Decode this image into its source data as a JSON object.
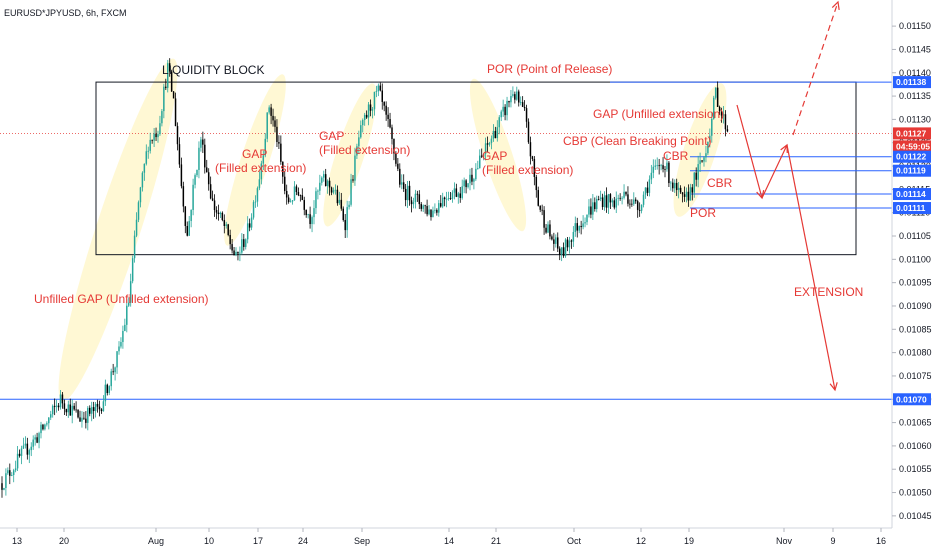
{
  "header": {
    "symbol_line": "EURUSD*JPYUSD, 6h, FXCM"
  },
  "colors": {
    "up": "#26a69a",
    "down": "#000000",
    "annotation": "#e53935",
    "level_line": "#2962ff",
    "current_price": "#e53935",
    "highlight": "#fff7cc"
  },
  "chart_data": {
    "type": "candlestick",
    "title": "",
    "ylim": [
      0.01043,
      0.01155
    ],
    "yticks": [
      "0.01045",
      "0.01050",
      "0.01055",
      "0.01060",
      "0.01065",
      "0.01070",
      "0.01075",
      "0.01080",
      "0.01085",
      "0.01090",
      "0.01095",
      "0.01100",
      "0.01105",
      "0.01110",
      "0.01115",
      "0.01120",
      "0.01125",
      "0.01130",
      "0.01135",
      "0.01140",
      "0.01145",
      "0.01150"
    ],
    "xticks": [
      "13",
      "20",
      "Aug",
      "10",
      "17",
      "24",
      "Sep",
      "14",
      "21",
      "Oct",
      "12",
      "19",
      "Nov",
      "9",
      "16"
    ],
    "price_path": [
      [
        0,
        0.01052
      ],
      [
        10,
        0.01058
      ],
      [
        20,
        0.01063
      ],
      [
        30,
        0.0107
      ],
      [
        40,
        0.01066
      ],
      [
        50,
        0.01068
      ],
      [
        60,
        0.0108
      ],
      [
        65,
        0.01091
      ],
      [
        70,
        0.01112
      ],
      [
        75,
        0.01125
      ],
      [
        80,
        0.01128
      ],
      [
        85,
        0.01141
      ],
      [
        88,
        0.01134
      ],
      [
        92,
        0.01116
      ],
      [
        95,
        0.01105
      ],
      [
        98,
        0.01115
      ],
      [
        102,
        0.01126
      ],
      [
        108,
        0.01112
      ],
      [
        114,
        0.01107
      ],
      [
        120,
        0.011
      ],
      [
        126,
        0.01106
      ],
      [
        132,
        0.01118
      ],
      [
        137,
        0.01133
      ],
      [
        141,
        0.01126
      ],
      [
        146,
        0.01112
      ],
      [
        152,
        0.01115
      ],
      [
        158,
        0.01109
      ],
      [
        164,
        0.01117
      ],
      [
        170,
        0.01115
      ],
      [
        176,
        0.01108
      ],
      [
        183,
        0.01126
      ],
      [
        188,
        0.01132
      ],
      [
        193,
        0.01136
      ],
      [
        199,
        0.01127
      ],
      [
        205,
        0.01115
      ],
      [
        212,
        0.01113
      ],
      [
        220,
        0.0111
      ],
      [
        228,
        0.01114
      ],
      [
        236,
        0.01115
      ],
      [
        244,
        0.0112
      ],
      [
        251,
        0.01126
      ],
      [
        258,
        0.01132
      ],
      [
        262,
        0.01136
      ],
      [
        268,
        0.01131
      ],
      [
        275,
        0.01112
      ],
      [
        281,
        0.01105
      ],
      [
        287,
        0.01101
      ],
      [
        293,
        0.01106
      ],
      [
        300,
        0.0111
      ],
      [
        307,
        0.01113
      ],
      [
        313,
        0.01112
      ],
      [
        320,
        0.01114
      ],
      [
        326,
        0.01111
      ],
      [
        333,
        0.01118
      ],
      [
        339,
        0.01121
      ],
      [
        345,
        0.01115
      ],
      [
        350,
        0.01112
      ],
      [
        355,
        0.01117
      ],
      [
        360,
        0.01122
      ],
      [
        364,
        0.0113
      ],
      [
        366,
        0.01136
      ],
      [
        369,
        0.01131
      ],
      [
        372,
        0.01128
      ]
    ],
    "liquidity_block": {
      "low": 0.01101,
      "high": 0.01138
    },
    "horizontal_levels": [
      0.01138,
      0.01122,
      0.01119,
      0.01114,
      0.01111,
      0.0107
    ],
    "current_price": 0.01127,
    "countdown": "04:59:05",
    "price_badges": [
      {
        "value": "0.01138",
        "kind": "level"
      },
      {
        "value": "0.01127",
        "kind": "current"
      },
      {
        "value": "04:59:05",
        "kind": "current"
      },
      {
        "value": "0.01122",
        "kind": "level"
      },
      {
        "value": "0.01119",
        "kind": "level"
      },
      {
        "value": "0.01114",
        "kind": "level"
      },
      {
        "value": "0.01111",
        "kind": "level"
      },
      {
        "value": "0.01070",
        "kind": "level"
      }
    ],
    "annotations": [
      {
        "text": "LIQUIDITY BLOCK",
        "style": "dark"
      },
      {
        "text": "POR (Point of Release)",
        "style": "red"
      },
      {
        "text": "GAP (Unfilled extension)",
        "style": "red"
      },
      {
        "text": "GAP",
        "style": "red"
      },
      {
        "text": "(Filled extension)",
        "style": "red"
      },
      {
        "text": "GAP",
        "style": "red"
      },
      {
        "text": "(Filled extension)",
        "style": "red"
      },
      {
        "text": "GAP",
        "style": "red"
      },
      {
        "text": "(Filled extension)",
        "style": "red"
      },
      {
        "text": "CBP (Clean Breaking Point)",
        "style": "red"
      },
      {
        "text": "CBR",
        "style": "red"
      },
      {
        "text": "CBR",
        "style": "red"
      },
      {
        "text": "POR",
        "style": "red"
      },
      {
        "text": "Unfilled GAP (Unfilled extension)",
        "style": "red"
      },
      {
        "text": "EXTENSION",
        "style": "red"
      }
    ]
  }
}
